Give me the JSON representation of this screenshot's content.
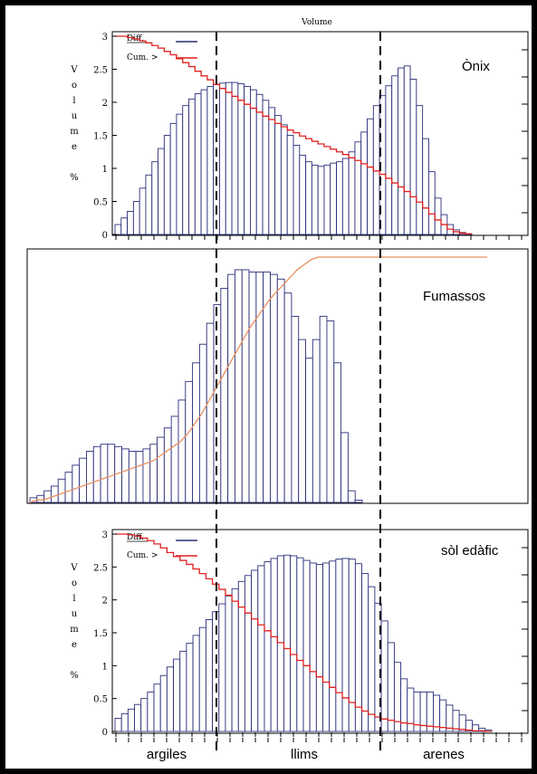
{
  "top_label": "Volume",
  "legend": {
    "diff": "Diff.",
    "cum": "Cum. >"
  },
  "ylabel_letters": [
    "V",
    "o",
    "l",
    "u",
    "m",
    "e",
    "",
    "%"
  ],
  "categories": [
    "argiles",
    "llims",
    "arenes"
  ],
  "colors": {
    "bars": "#2b2f7a",
    "cum_red": "#e02020",
    "cum_orange": "#e89060",
    "dashed": "#000000"
  },
  "chart_data": [
    {
      "type": "bar",
      "title": "Ònix",
      "ylabel": "Volume %",
      "ylim": [
        0,
        3
      ],
      "yticks": [
        "0",
        "0.5",
        "1",
        "1.5",
        "2",
        "2.5",
        "3"
      ],
      "series": [
        {
          "name": "Diff.",
          "values": [
            0.15,
            0.25,
            0.35,
            0.5,
            0.7,
            0.9,
            1.1,
            1.3,
            1.5,
            1.68,
            1.82,
            1.95,
            2.05,
            2.13,
            2.19,
            2.24,
            2.27,
            2.29,
            2.3,
            2.3,
            2.28,
            2.24,
            2.19,
            2.12,
            2.03,
            1.92,
            1.8,
            1.66,
            1.5,
            1.35,
            1.2,
            1.1,
            1.05,
            1.03,
            1.05,
            1.08,
            1.1,
            1.15,
            1.25,
            1.4,
            1.55,
            1.75,
            1.95,
            2.1,
            2.25,
            2.4,
            2.52,
            2.55,
            2.35,
            1.95,
            1.45,
            0.95,
            0.55,
            0.3,
            0.15,
            0.07,
            0.03,
            0.01
          ]
        },
        {
          "name": "Cum. >",
          "values": [
            3,
            3,
            2.98,
            2.96,
            2.93,
            2.9,
            2.86,
            2.82,
            2.77,
            2.72,
            2.66,
            2.6,
            2.54,
            2.47,
            2.4,
            2.34,
            2.27,
            2.21,
            2.15,
            2.09,
            2.03,
            1.97,
            1.91,
            1.85,
            1.79,
            1.74,
            1.68,
            1.63,
            1.58,
            1.54,
            1.49,
            1.45,
            1.41,
            1.37,
            1.33,
            1.29,
            1.25,
            1.21,
            1.16,
            1.12,
            1.07,
            1.02,
            0.96,
            0.91,
            0.85,
            0.78,
            0.72,
            0.65,
            0.57,
            0.49,
            0.4,
            0.31,
            0.22,
            0.15,
            0.08,
            0.04,
            0.02,
            0.01
          ]
        }
      ]
    },
    {
      "type": "bar",
      "title": "Fumassos",
      "series": [
        {
          "name": "",
          "values": [
            0.02,
            0.03,
            0.05,
            0.07,
            0.1,
            0.13,
            0.16,
            0.19,
            0.22,
            0.24,
            0.25,
            0.25,
            0.24,
            0.23,
            0.22,
            0.22,
            0.23,
            0.25,
            0.28,
            0.32,
            0.37,
            0.44,
            0.52,
            0.6,
            0.68,
            0.77,
            0.85,
            0.92,
            0.98,
            1.0,
            1.0,
            0.99,
            0.99,
            0.99,
            0.98,
            0.96,
            0.9,
            0.8,
            0.7,
            0.62,
            0.7,
            0.8,
            0.78,
            0.6,
            0.3,
            0.05,
            0.01
          ]
        },
        {
          "name": "",
          "values": [
            0.0,
            0.01,
            0.01,
            0.02,
            0.03,
            0.04,
            0.05,
            0.06,
            0.07,
            0.08,
            0.09,
            0.1,
            0.11,
            0.12,
            0.13,
            0.14,
            0.15,
            0.16,
            0.17,
            0.19,
            0.21,
            0.23,
            0.25,
            0.28,
            0.32,
            0.36,
            0.41,
            0.46,
            0.51,
            0.56,
            0.61,
            0.66,
            0.71,
            0.75,
            0.79,
            0.83,
            0.86,
            0.89,
            0.92,
            0.95,
            0.97,
            0.99,
            1.0,
            1.0,
            1.0,
            1.0,
            1.0
          ]
        }
      ]
    },
    {
      "type": "bar",
      "title": "sòl edàfic",
      "ylabel": "Volume %",
      "ylim": [
        0,
        3
      ],
      "yticks": [
        "0",
        "0.5",
        "1",
        "1.5",
        "2",
        "2.5",
        "3"
      ],
      "series": [
        {
          "name": "Diff.",
          "values": [
            0.2,
            0.27,
            0.34,
            0.41,
            0.5,
            0.6,
            0.72,
            0.85,
            0.98,
            1.1,
            1.22,
            1.34,
            1.46,
            1.58,
            1.7,
            1.82,
            1.94,
            2.06,
            2.17,
            2.28,
            2.37,
            2.45,
            2.52,
            2.58,
            2.63,
            2.67,
            2.68,
            2.67,
            2.64,
            2.6,
            2.56,
            2.54,
            2.56,
            2.59,
            2.62,
            2.63,
            2.62,
            2.55,
            2.4,
            2.2,
            1.95,
            1.68,
            1.35,
            1.05,
            0.8,
            0.66,
            0.6,
            0.6,
            0.6,
            0.55,
            0.48,
            0.4,
            0.32,
            0.25,
            0.17,
            0.1,
            0.05,
            0.02
          ]
        },
        {
          "name": "Cum. >",
          "values": [
            3,
            3,
            2.99,
            2.97,
            2.94,
            2.9,
            2.85,
            2.79,
            2.72,
            2.66,
            2.6,
            2.54,
            2.47,
            2.4,
            2.32,
            2.24,
            2.16,
            2.07,
            1.98,
            1.89,
            1.8,
            1.71,
            1.62,
            1.53,
            1.44,
            1.35,
            1.26,
            1.17,
            1.08,
            1.0,
            0.91,
            0.83,
            0.75,
            0.67,
            0.59,
            0.51,
            0.44,
            0.37,
            0.31,
            0.26,
            0.22,
            0.19,
            0.17,
            0.15,
            0.13,
            0.12,
            0.1,
            0.09,
            0.08,
            0.07,
            0.06,
            0.05,
            0.04,
            0.03,
            0.02,
            0.01,
            0.01,
            0.0
          ]
        }
      ]
    }
  ]
}
